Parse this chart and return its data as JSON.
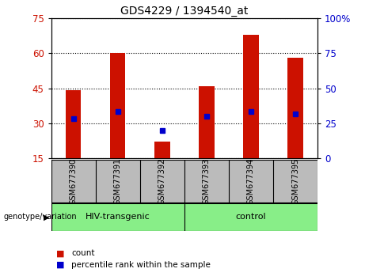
{
  "title": "GDS4229 / 1394540_at",
  "samples": [
    "GSM677390",
    "GSM677391",
    "GSM677392",
    "GSM677393",
    "GSM677394",
    "GSM677395"
  ],
  "count_values": [
    44,
    60,
    22,
    46,
    68,
    58
  ],
  "percentile_values": [
    32,
    35,
    27,
    33,
    35,
    34
  ],
  "ylim_left": [
    15,
    75
  ],
  "ylim_right": [
    0,
    100
  ],
  "yticks_left": [
    15,
    30,
    45,
    60,
    75
  ],
  "yticks_right": [
    0,
    25,
    50,
    75,
    100
  ],
  "bar_color": "#cc1100",
  "dot_color": "#0000cc",
  "plot_bg": "#ffffff",
  "tick_area_bg": "#bbbbbb",
  "group1_label": "HIV-transgenic",
  "group2_label": "control",
  "group1_indices": [
    0,
    1,
    2
  ],
  "group2_indices": [
    3,
    4,
    5
  ],
  "group_bg": "#88ee88",
  "xlabel_area": "genotype/variation",
  "legend_count": "count",
  "legend_pct": "percentile rank within the sample",
  "bar_width": 0.35,
  "left_label_color": "#cc1100",
  "right_label_color": "#0000cc"
}
